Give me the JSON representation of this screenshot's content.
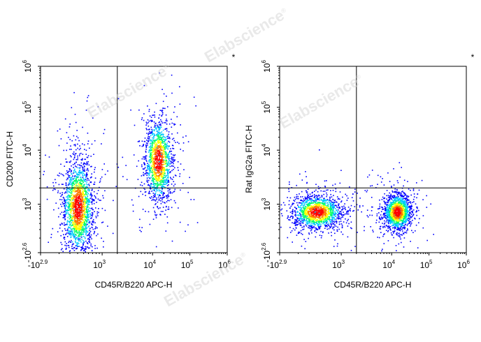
{
  "watermark_text": "Elabscience",
  "watermark_mark": "®",
  "chart_data": [
    {
      "type": "scatter",
      "subtype": "flow-cytometry-density-dot-plot",
      "xlabel": "CD45R/B220 APC-H",
      "ylabel": "CD200 FITC-H",
      "corner_mark": "*",
      "x_scale": "biexponential",
      "y_scale": "biexponential",
      "x_ticks": [
        {
          "base": "-10",
          "exp": "2.9"
        },
        {
          "base": "10",
          "exp": "3"
        },
        {
          "base": "10",
          "exp": "4"
        },
        {
          "base": "10",
          "exp": "5"
        },
        {
          "base": "10",
          "exp": "6"
        }
      ],
      "y_ticks": [
        {
          "base": "-10",
          "exp": "2.6"
        },
        {
          "base": "10",
          "exp": "3"
        },
        {
          "base": "10",
          "exp": "4"
        },
        {
          "base": "10",
          "exp": "5"
        },
        {
          "base": "10",
          "exp": "6"
        }
      ],
      "quadrant_gate": {
        "x": 2000,
        "y": 2000
      },
      "populations": [
        {
          "x_center": 400,
          "y_center": 900,
          "spread": "wide-vertical",
          "density": "high"
        },
        {
          "x_center": 14000,
          "y_center": 6500,
          "spread": "medium",
          "density": "high"
        }
      ],
      "colors": [
        "#0000ff",
        "#00c8ff",
        "#00ff64",
        "#ffff00",
        "#ff7800",
        "#ff0000"
      ]
    },
    {
      "type": "scatter",
      "subtype": "flow-cytometry-density-dot-plot",
      "xlabel": "CD45R/B220 APC-H",
      "ylabel": "Rat IgG2a FITC-H",
      "corner_mark": "*",
      "x_scale": "biexponential",
      "y_scale": "biexponential",
      "x_ticks": [
        {
          "base": "-10",
          "exp": "2.9"
        },
        {
          "base": "10",
          "exp": "3"
        },
        {
          "base": "10",
          "exp": "4"
        },
        {
          "base": "10",
          "exp": "5"
        },
        {
          "base": "10",
          "exp": "6"
        }
      ],
      "y_ticks": [
        {
          "base": "-10",
          "exp": "2.6"
        },
        {
          "base": "10",
          "exp": "3"
        },
        {
          "base": "10",
          "exp": "4"
        },
        {
          "base": "10",
          "exp": "5"
        },
        {
          "base": "10",
          "exp": "6"
        }
      ],
      "quadrant_gate": {
        "x": 2000,
        "y": 2000
      },
      "populations": [
        {
          "x_center": 400,
          "y_center": 700,
          "spread": "wide-horizontal",
          "density": "high"
        },
        {
          "x_center": 14000,
          "y_center": 700,
          "spread": "medium",
          "density": "high"
        }
      ],
      "colors": [
        "#0000ff",
        "#00c8ff",
        "#00ff64",
        "#ffff00",
        "#ff7800",
        "#ff0000"
      ]
    }
  ]
}
